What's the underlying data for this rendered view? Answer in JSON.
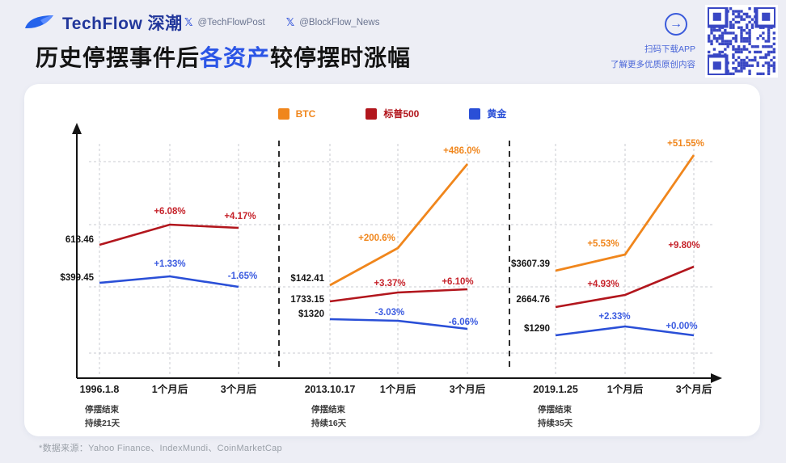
{
  "header": {
    "brand": "TechFlow 深潮",
    "x_icon": "𝕏",
    "handle_1": "@TechFlowPost",
    "handle_2": "@BlockFlow_News",
    "arrow_icon": "→",
    "qr_line1": "扫码下载APP",
    "qr_line2": "了解更多优质原创内容"
  },
  "title": {
    "pre": "历史停摆事件后",
    "accent": "各资产",
    "post": "较停摆时涨幅"
  },
  "footer": {
    "source": "*数据来源：Yahoo Finance、IndexMundi、CoinMarketCap"
  },
  "chart_data": {
    "type": "line",
    "title": "历史停摆事件后各资产较停摆时涨幅",
    "legend": [
      {
        "label": "BTC",
        "color": "#f0861c"
      },
      {
        "label": "标普500",
        "color": "#b2161d"
      },
      {
        "label": "黄金",
        "color": "#2a4fd7"
      }
    ],
    "panels": [
      {
        "date": "1996.1.8",
        "note_line1": "停摆结束",
        "note_line2": "持续21天",
        "tick_1m": "1个月后",
        "tick_3m": "3个月后",
        "series": [
          {
            "name": "标普500",
            "start_label": "618.46",
            "start_value": 618.46,
            "pct_1m": 6.08,
            "pct_3m": 4.17,
            "label_1m": "+6.08%",
            "label_3m": "+4.17%"
          },
          {
            "name": "黄金",
            "start_label": "$399.45",
            "start_value": 399.45,
            "pct_1m": 1.33,
            "pct_3m": -1.65,
            "label_1m": "+1.33%",
            "label_3m": "-1.65%"
          }
        ]
      },
      {
        "date": "2013.10.17",
        "note_line1": "停摆结束",
        "note_line2": "持续16天",
        "tick_1m": "1个月后",
        "tick_3m": "3个月后",
        "series": [
          {
            "name": "BTC",
            "start_label": "$142.41",
            "start_value": 142.41,
            "pct_1m": 200.6,
            "pct_3m": 486.0,
            "label_1m": "+200.6%",
            "label_3m": "+486.0%"
          },
          {
            "name": "标普500",
            "start_label": "1733.15",
            "start_value": 1733.15,
            "pct_1m": 3.37,
            "pct_3m": 6.1,
            "label_1m": "+3.37%",
            "label_3m": "+6.10%"
          },
          {
            "name": "黄金",
            "start_label": "$1320",
            "start_value": 1320,
            "pct_1m": -3.03,
            "pct_3m": -6.06,
            "label_1m": "-3.03%",
            "label_3m": "-6.06%"
          }
        ]
      },
      {
        "date": "2019.1.25",
        "note_line1": "停摆结束",
        "note_line2": "持续35天",
        "tick_1m": "1个月后",
        "tick_3m": "3个月后",
        "series": [
          {
            "name": "BTC",
            "start_label": "$3607.39",
            "start_value": 3607.39,
            "pct_1m": 5.53,
            "pct_3m": 51.55,
            "label_1m": "+5.53%",
            "label_3m": "+51.55%"
          },
          {
            "name": "标普500",
            "start_label": "2664.76",
            "start_value": 2664.76,
            "pct_1m": 4.93,
            "pct_3m": 9.8,
            "label_1m": "+4.93%",
            "label_3m": "+9.80%"
          },
          {
            "name": "黄金",
            "start_label": "$1290",
            "start_value": 1290,
            "pct_1m": 2.33,
            "pct_3m": 0.0,
            "label_1m": "+2.33%",
            "label_3m": "+0.00%"
          }
        ]
      }
    ]
  }
}
